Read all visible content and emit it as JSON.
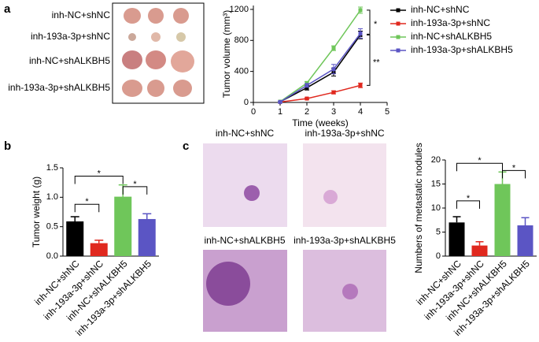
{
  "panel_labels": [
    "a",
    "b",
    "c"
  ],
  "tumor_photo": {
    "row_labels": [
      "inh-NC+shNC",
      "inh-193a-3p+shNC",
      "inh-NC+shALKBH5",
      "inh-193a-3p+shALKBH5"
    ]
  },
  "histology": {
    "captions": [
      "inh-NC+shNC",
      "inh-193a-3p+shNC",
      "inh-NC+shALKBH5",
      "inh-193a-3p+shALKBH5"
    ]
  },
  "chart_data": [
    {
      "type": "line",
      "x_label": "Time (weeks)",
      "y_label": "Tumor volume (mm³)",
      "x": [
        1,
        2,
        3,
        4
      ],
      "xlim": [
        0,
        5
      ],
      "xticks": [
        0,
        1,
        2,
        3,
        4,
        5
      ],
      "ylim": [
        0,
        1250
      ],
      "yticks": [
        0,
        400,
        800,
        1200
      ],
      "series": [
        {
          "name": "inh-NC+shNC",
          "color": "#000000",
          "values": [
            8,
            190,
            390,
            870
          ],
          "errors": [
            3,
            30,
            50,
            50
          ]
        },
        {
          "name": "inh-193a-3p+shNC",
          "color": "#e0281e",
          "values": [
            5,
            50,
            130,
            220
          ],
          "errors": [
            2,
            10,
            20,
            30
          ]
        },
        {
          "name": "inh-NC+shALKBH5",
          "color": "#6fc65a",
          "values": [
            10,
            250,
            700,
            1190
          ],
          "errors": [
            3,
            20,
            30,
            40
          ]
        },
        {
          "name": "inh-193a-3p+shALKBH5",
          "color": "#5b55c4",
          "values": [
            6,
            220,
            430,
            890
          ],
          "errors": [
            3,
            25,
            60,
            60
          ]
        }
      ],
      "annotations": [
        "*",
        "**"
      ]
    },
    {
      "type": "bar",
      "y_label": "Tumor weight (g)",
      "categories": [
        "inh-NC+shNC",
        "inh-193a-3p+shNC",
        "inh-NC+shALKBH5",
        "inh-193a-3p+shALKBH5"
      ],
      "values": [
        0.59,
        0.22,
        1.01,
        0.63
      ],
      "errors": [
        0.08,
        0.05,
        0.2,
        0.09
      ],
      "colors": [
        "#000000",
        "#e0281e",
        "#6fc65a",
        "#5b55c4"
      ],
      "ylim": [
        0,
        1.5
      ],
      "yticks": [
        {
          "value": 0,
          "label": "0.0"
        },
        0.5,
        {
          "value": 1,
          "label": "1.0"
        },
        1.5
      ],
      "annotations": [
        "*",
        "*",
        "*"
      ]
    },
    {
      "type": "bar",
      "y_label": "Numbers of metastatic nodules",
      "categories": [
        "inh-NC+shNC",
        "inh-193a-3p+shNC",
        "inh-NC+shALKBH5",
        "inh-193a-3p+shALKBH5"
      ],
      "values": [
        7,
        2.2,
        15,
        6.4
      ],
      "errors": [
        1.2,
        0.8,
        2.5,
        1.6
      ],
      "colors": [
        "#000000",
        "#e0281e",
        "#6fc65a",
        "#5b55c4"
      ],
      "ylim": [
        0,
        20
      ],
      "yticks": [
        0,
        5,
        10,
        15,
        20
      ],
      "annotations": [
        "*",
        "*",
        "*"
      ]
    }
  ]
}
